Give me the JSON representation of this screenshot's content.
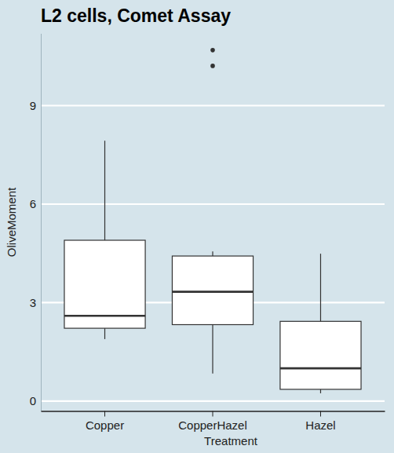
{
  "chart_data": {
    "type": "box",
    "title": "L2 cells, Comet Assay",
    "x_label": "Treatment",
    "y_label": "OliveMoment",
    "categories": [
      "Copper",
      "CopperHazel",
      "Hazel"
    ],
    "boxes": [
      {
        "whisker_low": 1.89,
        "q1": 2.22,
        "median": 2.6,
        "q3": 4.9,
        "whisker_high": 7.93,
        "outliers": []
      },
      {
        "whisker_low": 0.84,
        "q1": 2.33,
        "median": 3.33,
        "q3": 4.42,
        "whisker_high": 4.56,
        "outliers": [
          10.21,
          10.69
        ]
      },
      {
        "whisker_low": 0.24,
        "q1": 0.36,
        "median": 1.0,
        "q3": 2.43,
        "whisker_high": 4.49,
        "outliers": []
      }
    ],
    "color": "#ffffff",
    "ylim": [
      -0.3,
      11.2
    ],
    "yticks": [
      0,
      3,
      6,
      9
    ],
    "grid": true
  }
}
